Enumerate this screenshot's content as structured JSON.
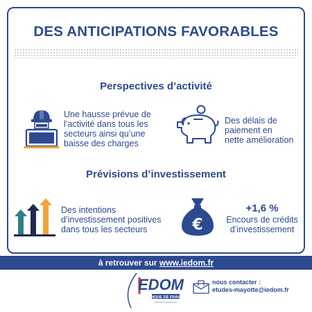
{
  "header": {
    "title": "DES ANTICIPATIONS FAVORABLES"
  },
  "activity": {
    "title": "Perspectives d’activité",
    "item1": {
      "icon": "worker-laptop-icon",
      "lines": [
        "Une hausse prévue de",
        "l’activité dans tous les",
        "secteurs ainsi qu’une",
        "baisse des charges"
      ]
    },
    "item2": {
      "icon": "piggy-bank-icon",
      "lines": [
        "Des délais de",
        "paiement en",
        "nette amélioration"
      ]
    }
  },
  "investment": {
    "title": "Prévisions d’investissement",
    "item1": {
      "icon": "rising-arrows-icon",
      "lines": [
        "Des intentions",
        "d’investissement positives",
        "dans tous les secteurs"
      ]
    },
    "item2": {
      "icon": "euro-money-bag-icon",
      "value": "+1,6 %",
      "lines": [
        "Encours de crédits",
        "d’investissement"
      ]
    }
  },
  "footer": {
    "prefix": "à retrouver sur",
    "link": "www.iedom.fr"
  },
  "logo": {
    "brand": "IEDOM",
    "subtitle": "BANQUE DE FRANCE"
  },
  "contact": {
    "label": "nous contacter :",
    "email": "etudes-mayotte@iedom.fr"
  },
  "colors": {
    "primary": "#2d4a90",
    "teal": "#2e7f86",
    "orange": "#f2a33a",
    "navy": "#1f2b4d"
  }
}
